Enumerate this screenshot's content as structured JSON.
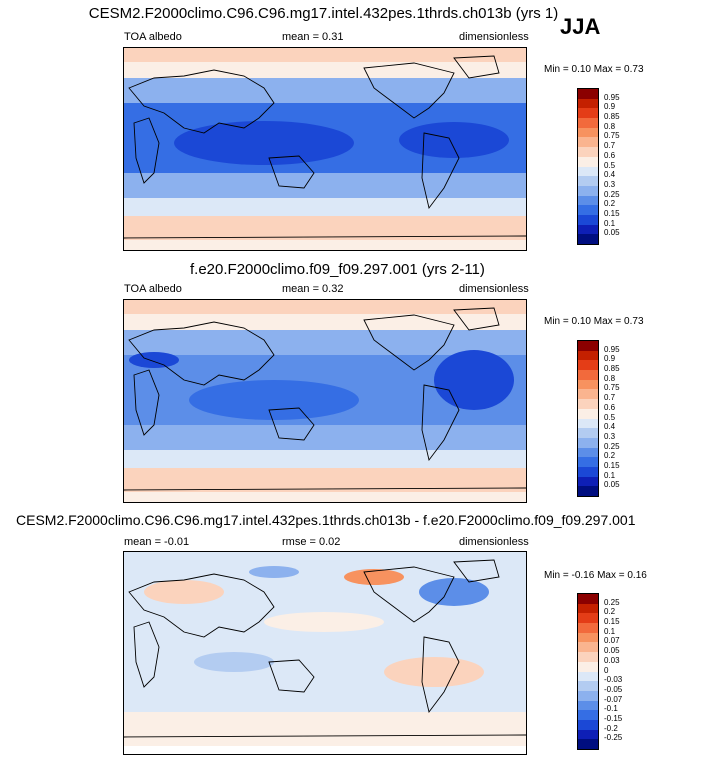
{
  "season": "JJA",
  "panels": [
    {
      "title": "CESM2.F2000climo.C96.C96.mg17.intel.432pes.1thrds.ch013b (yrs 1)",
      "left_label": "TOA albedo",
      "mid_label": "mean =  0.31",
      "right_label": "dimensionless",
      "minmax": "Min =  0.10 Max =  0.73",
      "scale_type": "absolute",
      "colorbar": {
        "labels": [
          "0.95",
          "0.9",
          "0.85",
          "0.8",
          "0.75",
          "0.7",
          "0.6",
          "0.5",
          "0.4",
          "0.3",
          "0.25",
          "0.2",
          "0.15",
          "0.1",
          "0.05"
        ],
        "colors": [
          "#8b0000",
          "#c42000",
          "#e43d17",
          "#f26a3c",
          "#f7925f",
          "#fab48f",
          "#fbd3bd",
          "#fbefe6",
          "#dce8f7",
          "#b3ccf1",
          "#8cb1ee",
          "#5c8ee8",
          "#356ee4",
          "#1b48d6",
          "#0e1fb6",
          "#000e80"
        ]
      }
    },
    {
      "title": "f.e20.F2000climo.f09_f09.297.001 (yrs 2-11)",
      "left_label": "TOA albedo",
      "mid_label": "mean =  0.32",
      "right_label": "dimensionless",
      "minmax": "Min =  0.10 Max =  0.73",
      "scale_type": "absolute",
      "colorbar": {
        "labels": [
          "0.95",
          "0.9",
          "0.85",
          "0.8",
          "0.75",
          "0.7",
          "0.6",
          "0.5",
          "0.4",
          "0.3",
          "0.25",
          "0.2",
          "0.15",
          "0.1",
          "0.05"
        ],
        "colors": [
          "#8b0000",
          "#c42000",
          "#e43d17",
          "#f26a3c",
          "#f7925f",
          "#fab48f",
          "#fbd3bd",
          "#fbefe6",
          "#dce8f7",
          "#b3ccf1",
          "#8cb1ee",
          "#5c8ee8",
          "#356ee4",
          "#1b48d6",
          "#0e1fb6",
          "#000e80"
        ]
      }
    },
    {
      "title": "CESM2.F2000climo.C96.C96.mg17.intel.432pes.1thrds.ch013b - f.e20.F2000climo.f09_f09.297.001",
      "left_label": "mean =  -0.01",
      "mid_label": "rmse =  0.02",
      "right_label": "dimensionless",
      "minmax": "Min =  -0.16 Max =  0.16",
      "scale_type": "difference",
      "colorbar": {
        "labels": [
          "0.25",
          "0.2",
          "0.15",
          "0.1",
          "0.07",
          "0.05",
          "0.03",
          "0",
          "-0.03",
          "-0.05",
          "-0.07",
          "-0.1",
          "-0.15",
          "-0.2",
          "-0.25"
        ],
        "colors": [
          "#8b0000",
          "#c42000",
          "#e43d17",
          "#f26a3c",
          "#f7925f",
          "#fab48f",
          "#fbd3bd",
          "#fbefe6",
          "#dce8f7",
          "#b3ccf1",
          "#8cb1ee",
          "#5c8ee8",
          "#356ee4",
          "#1b48d6",
          "#0e1fb6",
          "#000e80"
        ]
      }
    }
  ]
}
